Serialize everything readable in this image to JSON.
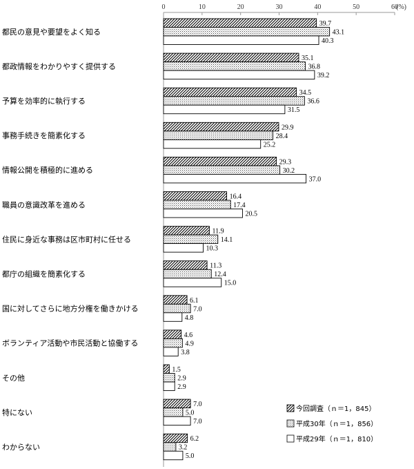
{
  "chart_data": {
    "type": "bar",
    "orientation": "horizontal",
    "unit_label": "(%)",
    "xlim": [
      0,
      60
    ],
    "x_ticks": [
      "0",
      "10",
      "20",
      "30",
      "40",
      "50",
      "60"
    ],
    "grid": false,
    "legend_position": "bottom-right",
    "categories": [
      "都民の意見や要望をよく知る",
      "都政情報をわかりやすく提供する",
      "予算を効率的に執行する",
      "事務手続きを簡素化する",
      "情報公開を積極的に進める",
      "職員の意識改革を進める",
      "住民に身近な事務は区市町村に任せる",
      "都庁の組織を簡素化する",
      "国に対してさらに地方分権を働きかける",
      "ボランティア活動や市民活動と協働する",
      "その他",
      "特にない",
      "わからない"
    ],
    "series": [
      {
        "name": "今回調査（ｎ＝1，845）",
        "pattern": "hatched",
        "values": [
          39.7,
          35.1,
          34.5,
          29.9,
          29.3,
          16.4,
          11.9,
          11.3,
          6.1,
          4.6,
          1.5,
          7.0,
          6.2
        ],
        "labels": [
          "39.7",
          "35.1",
          "34.5",
          "29.9",
          "29.3",
          "16.4",
          "11.9",
          "11.3",
          "6.1",
          "4.6",
          "1.5",
          "7.0",
          "6.2"
        ]
      },
      {
        "name": "平成30年（ｎ＝1，856）",
        "pattern": "dotted",
        "values": [
          43.1,
          36.8,
          36.6,
          28.4,
          30.2,
          17.4,
          14.1,
          12.4,
          7.0,
          4.9,
          2.9,
          5.0,
          3.2
        ],
        "labels": [
          "43.1",
          "36.8",
          "36.6",
          "28.4",
          "30.2",
          "17.4",
          "14.1",
          "12.4",
          "7.0",
          "4.9",
          "2.9",
          "5.0",
          "3.2"
        ]
      },
      {
        "name": "平成29年（ｎ＝1，810）",
        "pattern": "blank",
        "values": [
          40.3,
          39.2,
          31.5,
          25.2,
          37.0,
          20.5,
          10.3,
          15.0,
          4.8,
          3.8,
          2.9,
          7.0,
          5.0
        ],
        "labels": [
          "40.3",
          "39.2",
          "31.5",
          "25.2",
          "37.0",
          "20.5",
          "10.3",
          "15.0",
          "4.8",
          "3.8",
          "2.9",
          "7.0",
          "5.0"
        ]
      }
    ]
  }
}
